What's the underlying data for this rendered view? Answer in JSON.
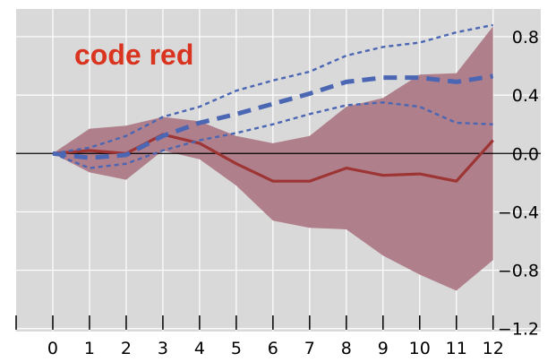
{
  "chart_data": {
    "type": "line",
    "annotation": "code red",
    "x": [
      0,
      1,
      2,
      3,
      4,
      5,
      6,
      7,
      8,
      9,
      10,
      11,
      12
    ],
    "xlim": [
      -1,
      13.3
    ],
    "ylim": [
      -1.22,
      0.99
    ],
    "x_ticks": [
      "0",
      "1",
      "2",
      "3",
      "4",
      "5",
      "6",
      "7",
      "8",
      "9",
      "10",
      "11",
      "12"
    ],
    "y_ticks": [
      {
        "value": 0.8,
        "label": "0.8"
      },
      {
        "value": 0.4,
        "label": "0.4"
      },
      {
        "value": 0.0,
        "label": "0.0"
      },
      {
        "value": -0.4,
        "label": "−0.4"
      },
      {
        "value": -0.8,
        "label": "−0.8"
      },
      {
        "value": -1.2,
        "label": "−1.2"
      }
    ],
    "y_axis_position": "right",
    "grid": true,
    "band": {
      "upper": [
        0.0,
        0.17,
        0.19,
        0.25,
        0.22,
        0.12,
        0.07,
        0.12,
        0.32,
        0.38,
        0.54,
        0.55,
        0.87
      ],
      "lower": [
        0.0,
        -0.13,
        -0.18,
        0.02,
        -0.04,
        -0.22,
        -0.46,
        -0.51,
        -0.52,
        -0.7,
        -0.83,
        -0.94,
        -0.73
      ]
    },
    "series": [
      {
        "values": [
          0.0,
          0.02,
          0.0,
          0.13,
          0.07,
          -0.07,
          -0.19,
          -0.19,
          -0.1,
          -0.15,
          -0.14,
          -0.19,
          0.09
        ]
      },
      {
        "values": [
          0.0,
          -0.03,
          -0.01,
          0.12,
          0.21,
          0.27,
          0.34,
          0.41,
          0.49,
          0.52,
          0.52,
          0.49,
          0.53
        ]
      },
      {
        "values": [
          0.0,
          0.04,
          0.12,
          0.25,
          0.32,
          0.43,
          0.5,
          0.56,
          0.67,
          0.73,
          0.76,
          0.83,
          0.88
        ]
      },
      {
        "values": [
          0.0,
          -0.1,
          -0.07,
          0.02,
          0.09,
          0.14,
          0.2,
          0.27,
          0.33,
          0.35,
          0.32,
          0.21,
          0.2
        ]
      }
    ],
    "colors": {
      "plot_background": "#d9d9d9",
      "grid": "#ffffff",
      "band": "#b07f8c",
      "median": "#9e3535",
      "forecast_mean": "#4b66b3",
      "forecast_bounds": "#4b66b3",
      "zero_line": "#000000",
      "annotation": "#d9341f"
    }
  }
}
